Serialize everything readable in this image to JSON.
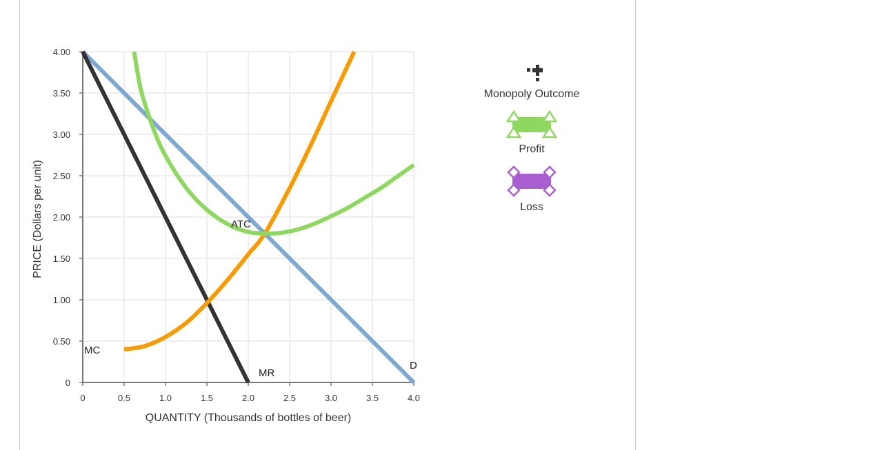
{
  "chart_data": {
    "type": "line",
    "title": "",
    "xlabel": "QUANTITY (Thousands of bottles of beer)",
    "ylabel": "PRICE (Dollars per unit)",
    "xlim": [
      0,
      4.0
    ],
    "ylim": [
      0,
      4.0
    ],
    "x_ticks": [
      "0",
      "0.5",
      "1.0",
      "1.5",
      "2.0",
      "2.5",
      "3.0",
      "3.5",
      "4.0"
    ],
    "y_ticks": [
      "0",
      "0.50",
      "1.00",
      "1.50",
      "2.00",
      "2.50",
      "3.00",
      "3.50",
      "4.00"
    ],
    "grid": true,
    "series": [
      {
        "name": "D",
        "label": "D",
        "color": "#7ea8d4",
        "points": [
          [
            0,
            4.0
          ],
          [
            4.0,
            0
          ]
        ]
      },
      {
        "name": "MR",
        "label": "MR",
        "color": "#333333",
        "points": [
          [
            0,
            4.0
          ],
          [
            2.0,
            0
          ]
        ]
      },
      {
        "name": "MC",
        "label": "MC",
        "color": "#f89a00",
        "points": [
          [
            0.5,
            0.4
          ],
          [
            0.75,
            0.44
          ],
          [
            1.0,
            0.55
          ],
          [
            1.25,
            0.72
          ],
          [
            1.5,
            0.96
          ],
          [
            1.75,
            1.24
          ],
          [
            2.0,
            1.55
          ],
          [
            2.2,
            1.8
          ],
          [
            2.5,
            2.35
          ],
          [
            2.75,
            2.86
          ],
          [
            3.0,
            3.4
          ],
          [
            3.28,
            4.0
          ]
        ]
      },
      {
        "name": "ATC",
        "label": "ATC",
        "color": "#8ed860",
        "points": [
          [
            0.62,
            4.0
          ],
          [
            0.7,
            3.55
          ],
          [
            0.8,
            3.22
          ],
          [
            0.9,
            2.95
          ],
          [
            1.0,
            2.74
          ],
          [
            1.2,
            2.42
          ],
          [
            1.4,
            2.18
          ],
          [
            1.6,
            2.01
          ],
          [
            1.8,
            1.89
          ],
          [
            2.0,
            1.82
          ],
          [
            2.2,
            1.8
          ],
          [
            2.4,
            1.81
          ],
          [
            2.6,
            1.85
          ],
          [
            2.8,
            1.92
          ],
          [
            3.0,
            2.01
          ],
          [
            3.2,
            2.11
          ],
          [
            3.4,
            2.23
          ],
          [
            3.6,
            2.35
          ],
          [
            3.8,
            2.49
          ],
          [
            4.0,
            2.63
          ]
        ]
      }
    ],
    "legend": {
      "placement": "right",
      "items": [
        {
          "label": "Monopoly Outcome",
          "icon": "black-plus-marker-icon",
          "color": "#333333"
        },
        {
          "label": "Profit",
          "icon": "green-rectangle-triangle-handles-icon",
          "color": "#8ed860"
        },
        {
          "label": "Loss",
          "icon": "purple-rectangle-diamond-handles-icon",
          "color": "#a95fd1"
        }
      ]
    }
  }
}
